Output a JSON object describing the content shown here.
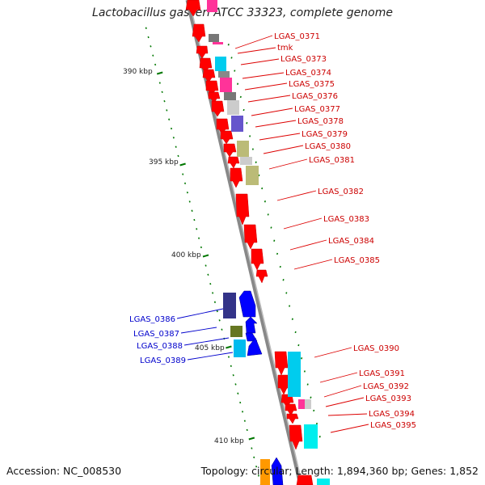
{
  "title": "Lactobacillus gasseri ATCC 33323, complete genome",
  "footer": {
    "accession": "Accession: NC_008530",
    "topology": "Topology: circular; Length: 1,894,360 bp; Genes: 1,852"
  },
  "scale_labels": [
    "390 kbp",
    "395 kbp",
    "400 kbp",
    "405 kbp",
    "410 kbp"
  ],
  "genes_right": [
    "LGAS_0371",
    "tmk",
    "LGAS_0373",
    "LGAS_0374",
    "LGAS_0375",
    "LGAS_0376",
    "LGAS_0377",
    "LGAS_0378",
    "LGAS_0379",
    "LGAS_0380",
    "LGAS_0381",
    "LGAS_0382",
    "LGAS_0383",
    "LGAS_0384",
    "LGAS_0385",
    "LGAS_0390",
    "LGAS_0391",
    "LGAS_0392",
    "LGAS_0393",
    "LGAS_0394",
    "LGAS_0395"
  ],
  "genes_left": [
    "LGAS_0386",
    "LGAS_0387",
    "LGAS_0388",
    "LGAS_0389"
  ],
  "colors": {
    "forward_gene": "#ff0000",
    "reverse_gene": "#0000ff",
    "right_label": "#cc0000",
    "left_label": "#0000cc",
    "backbone": "#888888",
    "scale_tick": "#007700"
  }
}
